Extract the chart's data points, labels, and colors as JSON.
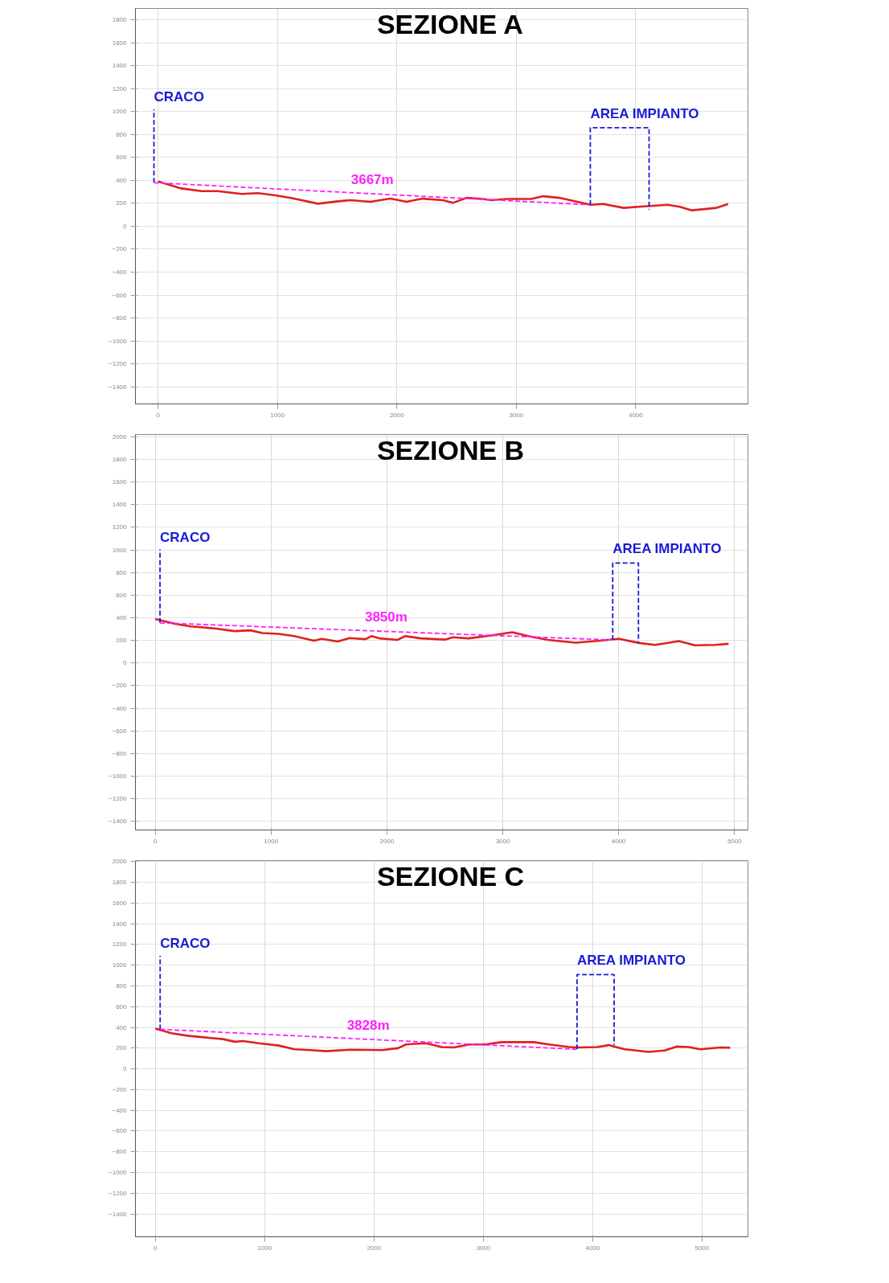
{
  "chart_data": [
    {
      "type": "line",
      "title": "SEZIONE A",
      "xlim": [
        -190,
        4940
      ],
      "ylim": [
        -1550,
        1900
      ],
      "xticks": [
        0,
        1000,
        2000,
        3000,
        4000
      ],
      "yticks": [
        -1400,
        -1200,
        -1000,
        -800,
        -600,
        -400,
        -200,
        0,
        200,
        400,
        600,
        800,
        1000,
        1200,
        1400,
        1600,
        1800
      ],
      "grid": true,
      "series": [
        {
          "color": "#e02020",
          "line_style": "solid",
          "x": [
            0,
            195,
            364,
            498,
            700,
            835,
            970,
            1104,
            1340,
            1508,
            1609,
            1778,
            1946,
            2081,
            2215,
            2384,
            2468,
            2586,
            2720,
            2788,
            2922,
            3124,
            3226,
            3360,
            3623,
            3731,
            3899,
            4067,
            4269,
            4370,
            4471,
            4673,
            4774
          ],
          "values": [
            390,
            330,
            306,
            306,
            282,
            289,
            272,
            248,
            197,
            218,
            228,
            214,
            241,
            214,
            241,
            228,
            204,
            248,
            238,
            228,
            238,
            238,
            262,
            248,
            187,
            194,
            160,
            173,
            187,
            170,
            139,
            160,
            194
          ]
        },
        {
          "color": "#1a1ad6",
          "line_style": "dashed",
          "x": [
            -35,
            -35
          ],
          "values": [
            380,
            1020
          ]
        },
        {
          "color": "#ff22ff",
          "line_style": "dashed",
          "x": [
            -35,
            3623
          ],
          "values": [
            380,
            187
          ]
        },
        {
          "color": "#1a1ad6",
          "line_style": "dashed",
          "x": [
            3620,
            3620,
            4112,
            4112
          ],
          "values": [
            187,
            860,
            860,
            146
          ]
        }
      ],
      "annotations": [
        "CRACO",
        "AREA IMPIANTO",
        "3667m"
      ]
    },
    {
      "type": "line",
      "title": "SEZIONE B",
      "xlim": [
        -171,
        5116
      ],
      "ylim": [
        -1476,
        2020
      ],
      "xticks": [
        0,
        1000,
        2000,
        3000,
        4000,
        5000
      ],
      "yticks": [
        -1400,
        -1200,
        -1000,
        -800,
        -600,
        -400,
        -200,
        0,
        200,
        400,
        600,
        800,
        1000,
        1200,
        1400,
        1600,
        1800,
        2000
      ],
      "grid": true,
      "series": [
        {
          "color": "#e02020",
          "line_style": "solid",
          "x": [
            0,
            171,
            308,
            514,
            685,
            822,
            925,
            1062,
            1199,
            1370,
            1438,
            1575,
            1678,
            1815,
            1866,
            1935,
            2089,
            2158,
            2295,
            2500,
            2568,
            2705,
            2911,
            3082,
            3219,
            3390,
            3630,
            3836,
            4007,
            4178,
            4315,
            4521,
            4658,
            4829,
            4949
          ],
          "values": [
            390,
            347,
            323,
            306,
            282,
            289,
            265,
            258,
            238,
            197,
            214,
            190,
            221,
            211,
            238,
            218,
            204,
            238,
            218,
            207,
            228,
            218,
            245,
            272,
            238,
            204,
            180,
            197,
            214,
            177,
            160,
            194,
            156,
            160,
            170
          ]
        },
        {
          "color": "#1a1ad6",
          "line_style": "dashed",
          "x": [
            41,
            41
          ],
          "values": [
            355,
            1003
          ]
        },
        {
          "color": "#ff22ff",
          "line_style": "dashed",
          "x": [
            41,
            3945
          ],
          "values": [
            355,
            204
          ]
        },
        {
          "color": "#1a1ad6",
          "line_style": "dashed",
          "x": [
            3949,
            3949,
            4171,
            4171
          ],
          "values": [
            204,
            884,
            884,
            177
          ]
        }
      ],
      "annotations": [
        "CRACO",
        "AREA IMPIANTO",
        "3850m"
      ]
    },
    {
      "type": "line",
      "title": "SEZIONE C",
      "xlim": [
        -182,
        5420
      ],
      "ylim": [
        -1620,
        2010
      ],
      "xticks": [
        0,
        1000,
        2000,
        3000,
        4000,
        5000
      ],
      "yticks": [
        -1400,
        -1200,
        -1000,
        -800,
        -600,
        -400,
        -200,
        0,
        200,
        400,
        600,
        800,
        1000,
        1200,
        1400,
        1600,
        1800,
        2000
      ],
      "grid": true,
      "series": [
        {
          "color": "#e02020",
          "line_style": "solid",
          "x": [
            0,
            146,
            291,
            509,
            619,
            728,
            801,
            946,
            1128,
            1274,
            1419,
            1565,
            1783,
            2074,
            2220,
            2293,
            2475,
            2620,
            2729,
            2875,
            3020,
            3166,
            3457,
            3603,
            3785,
            3894,
            4039,
            4148,
            4294,
            4512,
            4658,
            4767,
            4876,
            4985,
            5167,
            5258
          ],
          "values": [
            389,
            345,
            320,
            298,
            287,
            262,
            269,
            247,
            225,
            189,
            182,
            171,
            185,
            182,
            200,
            236,
            247,
            211,
            207,
            236,
            236,
            258,
            258,
            236,
            211,
            207,
            211,
            229,
            189,
            164,
            178,
            215,
            211,
            189,
            207,
            204
          ]
        },
        {
          "color": "#1a1ad6",
          "line_style": "dashed",
          "x": [
            44,
            44
          ],
          "values": [
            382,
            1091
          ]
        },
        {
          "color": "#ff22ff",
          "line_style": "dashed",
          "x": [
            44,
            3850
          ],
          "values": [
            382,
            189
          ]
        },
        {
          "color": "#1a1ad6",
          "line_style": "dashed",
          "x": [
            3857,
            3857,
            4196,
            4196
          ],
          "values": [
            189,
            909,
            909,
            229
          ]
        }
      ],
      "annotations": [
        "CRACO",
        "AREA IMPIANTO",
        "3828m"
      ]
    }
  ]
}
